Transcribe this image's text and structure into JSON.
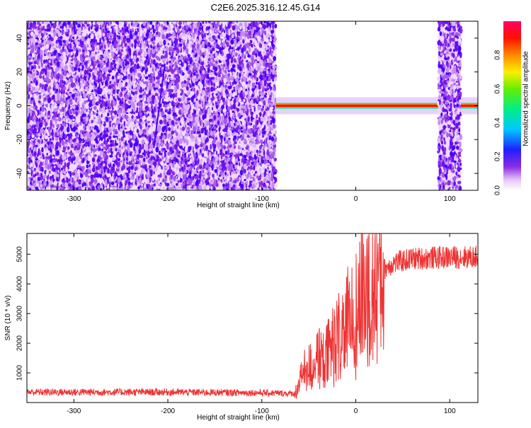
{
  "title": "C2E6.2025.316.12.45.G14",
  "chart_data": [
    {
      "type": "heatmap",
      "xlabel": "Height of straight line (km)",
      "ylabel": "Frequency (Hz)",
      "xlim": [
        -350,
        130
      ],
      "ylim": [
        -50,
        50
      ],
      "xticks": [
        -300,
        -200,
        -100,
        0,
        100
      ],
      "yticks": [
        -40,
        -20,
        0,
        20,
        40
      ],
      "colorbar": {
        "label": "Normalized spectral amplitude",
        "range": [
          0,
          1
        ],
        "ticks": [
          0.0,
          0.2,
          0.4,
          0.6,
          0.8
        ],
        "tick_labels": [
          "0.0",
          "0.2",
          "0.4",
          "0.6",
          "0.8"
        ]
      },
      "regions": [
        {
          "x": [
            -350,
            -85
          ],
          "y": [
            -50,
            50
          ],
          "pattern": "noise",
          "level": 0.15
        },
        {
          "x": [
            -85,
            88
          ],
          "y": [
            -2,
            2
          ],
          "pattern": "carrier",
          "level": 0.9
        },
        {
          "x": [
            88,
            112
          ],
          "y": [
            -50,
            50
          ],
          "pattern": "noise",
          "level": 0.15
        },
        {
          "x": [
            112,
            130
          ],
          "y": [
            -2,
            2
          ],
          "pattern": "carrier",
          "level": 0.9
        }
      ],
      "streak": {
        "x": [
          -215,
          -203
        ],
        "y": [
          -25,
          25
        ]
      }
    },
    {
      "type": "line",
      "xlabel": "Height of straight line (km)",
      "ylabel": "SNR (10 * v/v)",
      "xlim": [
        -350,
        130
      ],
      "ylim": [
        0,
        5700
      ],
      "xticks": [
        -300,
        -200,
        -100,
        0,
        100
      ],
      "yticks": [
        1000,
        2000,
        3000,
        4000,
        5000
      ],
      "color": "#ee3333",
      "envelope": [
        {
          "x": -350,
          "y": 350
        },
        {
          "x": -200,
          "y": 350
        },
        {
          "x": -100,
          "y": 330
        },
        {
          "x": -65,
          "y": 300
        },
        {
          "x": -55,
          "y": 1000
        },
        {
          "x": -45,
          "y": 1300
        },
        {
          "x": -30,
          "y": 1600
        },
        {
          "x": -15,
          "y": 2400
        },
        {
          "x": 0,
          "y": 3000
        },
        {
          "x": 10,
          "y": 3800
        },
        {
          "x": 25,
          "y": 4400
        },
        {
          "x": 40,
          "y": 4700
        },
        {
          "x": 60,
          "y": 4850
        },
        {
          "x": 100,
          "y": 4900
        },
        {
          "x": 130,
          "y": 4900
        }
      ]
    }
  ]
}
